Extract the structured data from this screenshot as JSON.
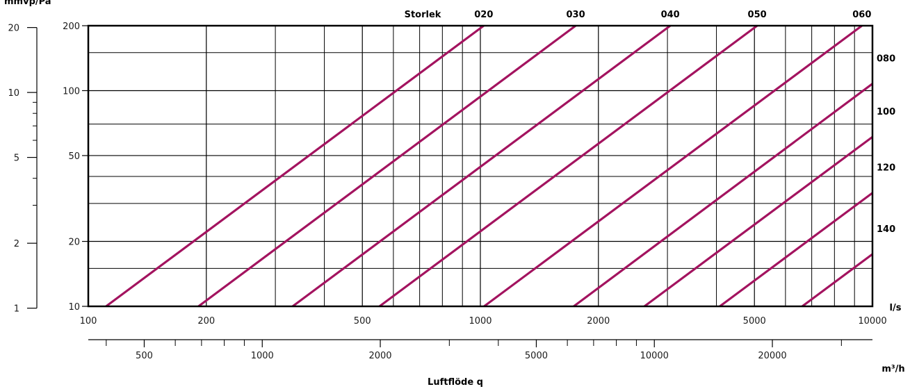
{
  "chart_data": {
    "type": "line",
    "title": "",
    "xlabel": "Luftflöde q",
    "x_unit": "l/s",
    "x_scale": "log",
    "xlim": [
      100,
      10000
    ],
    "x_major_ticks": [
      100,
      200,
      500,
      1000,
      2000,
      5000,
      10000
    ],
    "x_major_tick_labels": [
      "100",
      "200",
      "500",
      "1000",
      "2000",
      "5000",
      "10000"
    ],
    "x_minor_ticks": [
      300,
      400,
      600,
      700,
      800,
      900,
      3000,
      4000,
      6000,
      7000,
      8000,
      9000
    ],
    "x2_unit": "m³/h",
    "x2_scale": "log",
    "x2_major_ticks": [
      500,
      1000,
      2000,
      5000,
      10000,
      20000
    ],
    "x2_major_tick_labels": [
      "500",
      "1000",
      "2000",
      "5000",
      "10000",
      "20000"
    ],
    "x2_minor_ticks": [
      400,
      600,
      700,
      800,
      900,
      3000,
      4000,
      6000,
      7000,
      8000,
      9000,
      30000
    ],
    "ylabel": "Pa",
    "y_scale": "log",
    "ylim": [
      10,
      200
    ],
    "y_major_ticks": [
      10,
      20,
      50,
      100,
      200
    ],
    "y_major_tick_labels": [
      "10",
      "20",
      "50",
      "100",
      "200"
    ],
    "y_minor_ticks": [
      30,
      40
    ],
    "y2_unit": "mmvp",
    "y2_scale": "log",
    "y2_major_ticks": [
      1,
      2,
      5,
      10,
      20
    ],
    "y2_major_tick_labels": [
      "1",
      "2",
      "5",
      "10",
      "20"
    ],
    "y2_minor_ticks": [
      3,
      4,
      6,
      7,
      8,
      9
    ],
    "legend_title": "Storlek",
    "grid": true,
    "series_color": "#a3135f",
    "series": [
      {
        "name": "020",
        "points": [
          [
            111,
            10
          ],
          [
            1020,
            200
          ]
        ]
      },
      {
        "name": "030",
        "points": [
          [
            191,
            10
          ],
          [
            1750,
            200
          ]
        ]
      },
      {
        "name": "040",
        "points": [
          [
            332,
            10
          ],
          [
            3050,
            200
          ]
        ]
      },
      {
        "name": "050",
        "points": [
          [
            553,
            10
          ],
          [
            5080,
            200
          ]
        ]
      },
      {
        "name": "060",
        "points": [
          [
            1022,
            10
          ],
          [
            9400,
            200
          ]
        ]
      },
      {
        "name": "080",
        "points": [
          [
            1730,
            10
          ],
          [
            15800,
            200
          ]
        ]
      },
      {
        "name": "100",
        "points": [
          [
            2620,
            10
          ],
          [
            24100,
            200
          ]
        ]
      },
      {
        "name": "120",
        "points": [
          [
            4080,
            10
          ],
          [
            37500,
            200
          ]
        ]
      },
      {
        "name": "140",
        "points": [
          [
            6620,
            10
          ],
          [
            60800,
            200
          ]
        ]
      }
    ]
  }
}
